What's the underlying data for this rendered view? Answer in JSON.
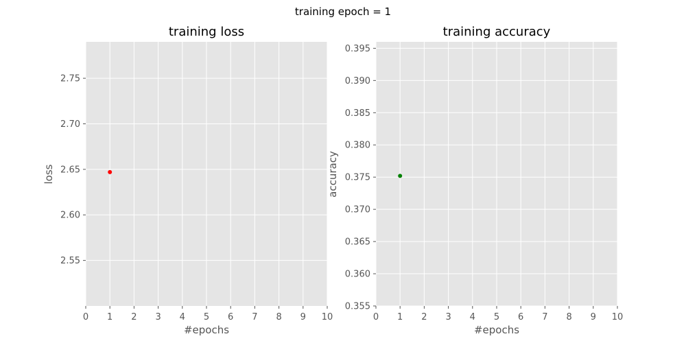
{
  "suptitle": "training epoch = 1",
  "chart_data": [
    {
      "type": "scatter",
      "title": "training loss",
      "xlabel": "#epochs",
      "ylabel": "loss",
      "xlim": [
        0,
        10
      ],
      "ylim": [
        2.5,
        2.79
      ],
      "xticks": [
        0,
        1,
        2,
        3,
        4,
        5,
        6,
        7,
        8,
        9,
        10
      ],
      "xtick_labels": [
        "0",
        "1",
        "2",
        "3",
        "4",
        "5",
        "6",
        "7",
        "8",
        "9",
        "10"
      ],
      "yticks": [
        2.55,
        2.6,
        2.65,
        2.7,
        2.75
      ],
      "ytick_labels": [
        "2.55",
        "2.60",
        "2.65",
        "2.70",
        "2.75"
      ],
      "grid": true,
      "series": [
        {
          "x": [
            1
          ],
          "y": [
            2.647
          ],
          "color": "#ff0000"
        }
      ]
    },
    {
      "type": "scatter",
      "title": "training accuracy",
      "xlabel": "#epochs",
      "ylabel": "accuracy",
      "xlim": [
        0,
        10
      ],
      "ylim": [
        0.355,
        0.396
      ],
      "xticks": [
        0,
        1,
        2,
        3,
        4,
        5,
        6,
        7,
        8,
        9,
        10
      ],
      "xtick_labels": [
        "0",
        "1",
        "2",
        "3",
        "4",
        "5",
        "6",
        "7",
        "8",
        "9",
        "10"
      ],
      "yticks": [
        0.355,
        0.36,
        0.365,
        0.37,
        0.375,
        0.38,
        0.385,
        0.39,
        0.395
      ],
      "ytick_labels": [
        "0.355",
        "0.360",
        "0.365",
        "0.370",
        "0.375",
        "0.380",
        "0.385",
        "0.390",
        "0.395"
      ],
      "grid": true,
      "series": [
        {
          "x": [
            1
          ],
          "y": [
            0.3752
          ],
          "color": "#008000"
        }
      ]
    }
  ]
}
